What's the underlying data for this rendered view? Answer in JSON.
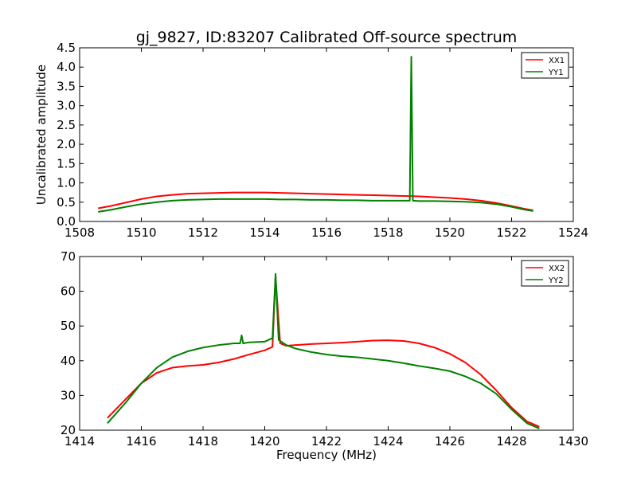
{
  "chart_data": [
    {
      "type": "line",
      "title": "gj_9827, ID:83207 Calibrated Off-source spectrum",
      "xlabel": "",
      "ylabel": "Uncalibrated amplitude",
      "xlim": [
        1508,
        1524
      ],
      "ylim": [
        0,
        4.5
      ],
      "xticks": [
        "1508",
        "1510",
        "1512",
        "1514",
        "1516",
        "1518",
        "1520",
        "1522",
        "1524"
      ],
      "yticks": [
        "0.0",
        "0.5",
        "1.0",
        "1.5",
        "2.0",
        "2.5",
        "3.0",
        "3.5",
        "4.0",
        "4.5"
      ],
      "legend": "top-right",
      "series": [
        {
          "name": "XX1",
          "color": "#ff0000",
          "x": [
            1508.6,
            1509.0,
            1509.5,
            1510.0,
            1510.5,
            1511.0,
            1511.5,
            1512.0,
            1512.5,
            1513.0,
            1513.5,
            1514.0,
            1514.5,
            1515.0,
            1515.5,
            1516.0,
            1516.5,
            1517.0,
            1517.5,
            1518.0,
            1518.5,
            1519.0,
            1519.5,
            1520.0,
            1520.5,
            1521.0,
            1521.5,
            1522.0,
            1522.4,
            1522.7
          ],
          "y": [
            0.34,
            0.4,
            0.49,
            0.58,
            0.65,
            0.69,
            0.72,
            0.73,
            0.74,
            0.75,
            0.75,
            0.75,
            0.74,
            0.73,
            0.72,
            0.71,
            0.7,
            0.69,
            0.68,
            0.67,
            0.66,
            0.65,
            0.63,
            0.61,
            0.58,
            0.54,
            0.48,
            0.4,
            0.33,
            0.29
          ]
        },
        {
          "name": "YY1",
          "color": "#008000",
          "x": [
            1508.6,
            1509.0,
            1509.5,
            1510.0,
            1510.5,
            1511.0,
            1511.5,
            1512.0,
            1512.5,
            1513.0,
            1513.5,
            1514.0,
            1514.5,
            1515.0,
            1515.5,
            1516.0,
            1516.5,
            1517.0,
            1517.5,
            1518.0,
            1518.5,
            1518.7,
            1518.75,
            1518.8,
            1519.0,
            1519.5,
            1520.0,
            1520.5,
            1521.0,
            1521.5,
            1522.0,
            1522.4,
            1522.7
          ],
          "y": [
            0.25,
            0.3,
            0.38,
            0.45,
            0.5,
            0.54,
            0.56,
            0.57,
            0.58,
            0.58,
            0.58,
            0.58,
            0.57,
            0.57,
            0.56,
            0.56,
            0.55,
            0.55,
            0.54,
            0.54,
            0.54,
            0.54,
            4.27,
            0.54,
            0.53,
            0.53,
            0.52,
            0.51,
            0.49,
            0.45,
            0.38,
            0.31,
            0.27
          ]
        }
      ]
    },
    {
      "type": "line",
      "title": "",
      "xlabel": "Frequency (MHz)",
      "ylabel": "",
      "xlim": [
        1414,
        1430
      ],
      "ylim": [
        20,
        70
      ],
      "xticks": [
        "1414",
        "1416",
        "1418",
        "1420",
        "1422",
        "1424",
        "1426",
        "1428",
        "1430"
      ],
      "yticks": [
        "20",
        "30",
        "40",
        "50",
        "60",
        "70"
      ],
      "legend": "top-right",
      "series": [
        {
          "name": "XX2",
          "color": "#ff0000",
          "x": [
            1414.9,
            1415.5,
            1416.0,
            1416.5,
            1417.0,
            1417.5,
            1418.0,
            1418.5,
            1419.0,
            1419.5,
            1420.0,
            1420.25,
            1420.35,
            1420.5,
            1420.7,
            1421.0,
            1421.5,
            1422.0,
            1422.5,
            1423.0,
            1423.5,
            1424.0,
            1424.5,
            1425.0,
            1425.5,
            1426.0,
            1426.5,
            1427.0,
            1427.5,
            1428.0,
            1428.5,
            1428.9
          ],
          "y": [
            23.5,
            29.0,
            33.5,
            36.5,
            38.0,
            38.5,
            38.8,
            39.5,
            40.5,
            41.8,
            43.0,
            44.0,
            64.0,
            45.0,
            44.3,
            44.5,
            44.8,
            45.0,
            45.2,
            45.5,
            45.8,
            45.9,
            45.7,
            45.0,
            43.8,
            42.0,
            39.5,
            36.0,
            31.5,
            26.5,
            22.5,
            21.0
          ]
        },
        {
          "name": "YY2",
          "color": "#008000",
          "x": [
            1414.9,
            1415.5,
            1416.0,
            1416.5,
            1417.0,
            1417.5,
            1418.0,
            1418.5,
            1419.0,
            1419.2,
            1419.25,
            1419.3,
            1419.5,
            1420.0,
            1420.25,
            1420.35,
            1420.45,
            1420.7,
            1421.0,
            1421.5,
            1422.0,
            1422.5,
            1423.0,
            1423.5,
            1424.0,
            1424.5,
            1425.0,
            1425.5,
            1426.0,
            1426.5,
            1427.0,
            1427.5,
            1428.0,
            1428.5,
            1428.9
          ],
          "y": [
            22.0,
            28.0,
            33.5,
            38.0,
            41.0,
            42.7,
            43.8,
            44.5,
            45.0,
            45.0,
            47.3,
            45.0,
            45.3,
            45.5,
            46.5,
            65.0,
            46.0,
            44.5,
            43.5,
            42.5,
            41.8,
            41.3,
            41.0,
            40.5,
            40.0,
            39.3,
            38.5,
            37.8,
            37.0,
            35.5,
            33.5,
            30.5,
            26.0,
            22.0,
            20.5
          ]
        }
      ]
    }
  ]
}
